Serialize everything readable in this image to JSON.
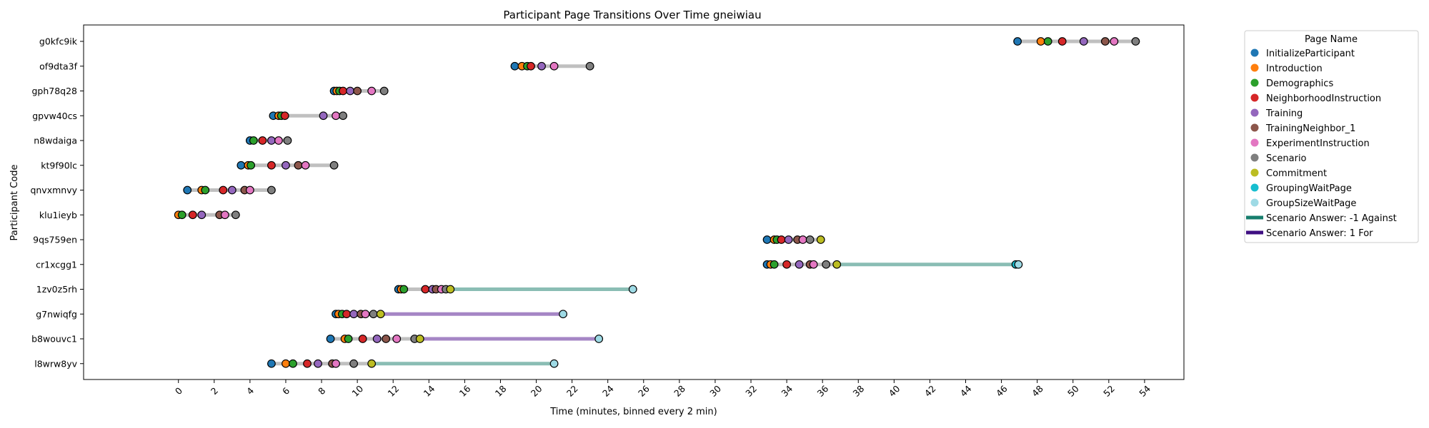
{
  "chart_data": {
    "type": "scatter",
    "title": "Participant Page Transitions Over Time gneiwiau",
    "xlabel": "Time (minutes, binned every 2 min)",
    "ylabel": "Participant Code",
    "xlim": [
      -5.3,
      56.2
    ],
    "xticks": [
      0,
      2,
      4,
      6,
      8,
      10,
      12,
      14,
      16,
      18,
      20,
      22,
      24,
      26,
      28,
      30,
      32,
      34,
      36,
      38,
      40,
      42,
      44,
      46,
      48,
      50,
      52,
      54
    ],
    "grid": false,
    "legend_position": "outside-top-right",
    "legend_title": "Page Name",
    "pages": [
      {
        "name": "InitializeParticipant",
        "color": "#1f77b4"
      },
      {
        "name": "Introduction",
        "color": "#ff7f0e"
      },
      {
        "name": "Demographics",
        "color": "#2ca02c"
      },
      {
        "name": "NeighborhoodInstruction",
        "color": "#d62728"
      },
      {
        "name": "Training",
        "color": "#9467bd"
      },
      {
        "name": "TrainingNeighbor_1",
        "color": "#8c564b"
      },
      {
        "name": "ExperimentInstruction",
        "color": "#e377c2"
      },
      {
        "name": "Scenario",
        "color": "#7f7f7f"
      },
      {
        "name": "Commitment",
        "color": "#bcbd22"
      },
      {
        "name": "GroupingWaitPage",
        "color": "#17becf"
      },
      {
        "name": "GroupSizeWaitPage",
        "color": "#9edae5"
      }
    ],
    "line_legend": [
      {
        "name": "Scenario Answer: -1 Against",
        "color": "#177e6d"
      },
      {
        "name": "Scenario Answer: 1 For",
        "color": "#3f0f82"
      }
    ],
    "segment_colors": {
      "neutral": "#c0c0c0",
      "-1": "#8abdb4",
      "1": "#a586c5"
    },
    "participants": [
      {
        "code": "g0kfc9ik",
        "answer": null,
        "points": [
          {
            "page": "InitializeParticipant",
            "t": 46.9
          },
          {
            "page": "Introduction",
            "t": 48.2
          },
          {
            "page": "Demographics",
            "t": 48.6
          },
          {
            "page": "NeighborhoodInstruction",
            "t": 49.4
          },
          {
            "page": "Training",
            "t": 50.6
          },
          {
            "page": "TrainingNeighbor_1",
            "t": 51.8
          },
          {
            "page": "ExperimentInstruction",
            "t": 52.3
          },
          {
            "page": "Scenario",
            "t": 53.5
          }
        ]
      },
      {
        "code": "of9dta3f",
        "answer": null,
        "points": [
          {
            "page": "InitializeParticipant",
            "t": 18.8
          },
          {
            "page": "Introduction",
            "t": 19.2
          },
          {
            "page": "Demographics",
            "t": 19.5
          },
          {
            "page": "NeighborhoodInstruction",
            "t": 19.7
          },
          {
            "page": "Training",
            "t": 20.3
          },
          {
            "page": "ExperimentInstruction",
            "t": 21.0
          },
          {
            "page": "Scenario",
            "t": 23.0
          }
        ]
      },
      {
        "code": "gph78q28",
        "answer": null,
        "points": [
          {
            "page": "InitializeParticipant",
            "t": 8.7
          },
          {
            "page": "Introduction",
            "t": 8.85
          },
          {
            "page": "Demographics",
            "t": 9.0
          },
          {
            "page": "NeighborhoodInstruction",
            "t": 9.2
          },
          {
            "page": "Training",
            "t": 9.6
          },
          {
            "page": "TrainingNeighbor_1",
            "t": 10.0
          },
          {
            "page": "ExperimentInstruction",
            "t": 10.8
          },
          {
            "page": "Scenario",
            "t": 11.5
          }
        ]
      },
      {
        "code": "gpvw40cs",
        "answer": null,
        "points": [
          {
            "page": "InitializeParticipant",
            "t": 5.3
          },
          {
            "page": "Introduction",
            "t": 5.6
          },
          {
            "page": "Demographics",
            "t": 5.75
          },
          {
            "page": "NeighborhoodInstruction",
            "t": 5.95
          },
          {
            "page": "Training",
            "t": 8.1
          },
          {
            "page": "ExperimentInstruction",
            "t": 8.8
          },
          {
            "page": "Scenario",
            "t": 9.2
          }
        ]
      },
      {
        "code": "n8wdaiga",
        "answer": null,
        "points": [
          {
            "page": "InitializeParticipant",
            "t": 4.0
          },
          {
            "page": "Demographics",
            "t": 4.2
          },
          {
            "page": "NeighborhoodInstruction",
            "t": 4.7
          },
          {
            "page": "Training",
            "t": 5.2
          },
          {
            "page": "ExperimentInstruction",
            "t": 5.6
          },
          {
            "page": "Scenario",
            "t": 6.1
          }
        ]
      },
      {
        "code": "kt9f90lc",
        "answer": null,
        "points": [
          {
            "page": "InitializeParticipant",
            "t": 3.5
          },
          {
            "page": "Introduction",
            "t": 3.9
          },
          {
            "page": "Demographics",
            "t": 4.05
          },
          {
            "page": "NeighborhoodInstruction",
            "t": 5.2
          },
          {
            "page": "Training",
            "t": 6.0
          },
          {
            "page": "TrainingNeighbor_1",
            "t": 6.7
          },
          {
            "page": "ExperimentInstruction",
            "t": 7.1
          },
          {
            "page": "Scenario",
            "t": 8.7
          }
        ]
      },
      {
        "code": "qnvxmnvy",
        "answer": null,
        "points": [
          {
            "page": "InitializeParticipant",
            "t": 0.5
          },
          {
            "page": "Introduction",
            "t": 1.3
          },
          {
            "page": "Demographics",
            "t": 1.5
          },
          {
            "page": "NeighborhoodInstruction",
            "t": 2.5
          },
          {
            "page": "Training",
            "t": 3.0
          },
          {
            "page": "TrainingNeighbor_1",
            "t": 3.7
          },
          {
            "page": "ExperimentInstruction",
            "t": 4.0
          },
          {
            "page": "Scenario",
            "t": 5.2
          }
        ]
      },
      {
        "code": "klu1ieyb",
        "answer": null,
        "points": [
          {
            "page": "Introduction",
            "t": 0.0
          },
          {
            "page": "Demographics",
            "t": 0.2
          },
          {
            "page": "NeighborhoodInstruction",
            "t": 0.8
          },
          {
            "page": "Training",
            "t": 1.3
          },
          {
            "page": "TrainingNeighbor_1",
            "t": 2.3
          },
          {
            "page": "ExperimentInstruction",
            "t": 2.6
          },
          {
            "page": "Scenario",
            "t": 3.2
          }
        ]
      },
      {
        "code": "9qs759en",
        "answer": null,
        "points": [
          {
            "page": "InitializeParticipant",
            "t": 32.9
          },
          {
            "page": "Introduction",
            "t": 33.3
          },
          {
            "page": "Demographics",
            "t": 33.45
          },
          {
            "page": "NeighborhoodInstruction",
            "t": 33.7
          },
          {
            "page": "Training",
            "t": 34.1
          },
          {
            "page": "TrainingNeighbor_1",
            "t": 34.6
          },
          {
            "page": "ExperimentInstruction",
            "t": 34.9
          },
          {
            "page": "Scenario",
            "t": 35.3
          },
          {
            "page": "Commitment",
            "t": 35.9
          }
        ]
      },
      {
        "code": "cr1xcgg1",
        "answer": "-1",
        "points": [
          {
            "page": "InitializeParticipant",
            "t": 32.9
          },
          {
            "page": "Introduction",
            "t": 33.1
          },
          {
            "page": "Demographics",
            "t": 33.3
          },
          {
            "page": "NeighborhoodInstruction",
            "t": 34.0
          },
          {
            "page": "Training",
            "t": 34.7
          },
          {
            "page": "TrainingNeighbor_1",
            "t": 35.3
          },
          {
            "page": "ExperimentInstruction",
            "t": 35.5
          },
          {
            "page": "Scenario",
            "t": 36.2
          },
          {
            "page": "Commitment",
            "t": 36.8
          },
          {
            "page": "GroupingWaitPage",
            "t": 46.8
          },
          {
            "page": "GroupSizeWaitPage",
            "t": 46.95
          }
        ]
      },
      {
        "code": "1zv0z5rh",
        "answer": "-1",
        "points": [
          {
            "page": "InitializeParticipant",
            "t": 12.3
          },
          {
            "page": "Introduction",
            "t": 12.45
          },
          {
            "page": "Demographics",
            "t": 12.6
          },
          {
            "page": "NeighborhoodInstruction",
            "t": 13.8
          },
          {
            "page": "Training",
            "t": 14.2
          },
          {
            "page": "TrainingNeighbor_1",
            "t": 14.4
          },
          {
            "page": "ExperimentInstruction",
            "t": 14.7
          },
          {
            "page": "Scenario",
            "t": 14.95
          },
          {
            "page": "Commitment",
            "t": 15.2
          },
          {
            "page": "GroupSizeWaitPage",
            "t": 25.4
          }
        ]
      },
      {
        "code": "g7nwiqfg",
        "answer": "1",
        "points": [
          {
            "page": "InitializeParticipant",
            "t": 8.8
          },
          {
            "page": "Introduction",
            "t": 8.95
          },
          {
            "page": "Demographics",
            "t": 9.15
          },
          {
            "page": "NeighborhoodInstruction",
            "t": 9.4
          },
          {
            "page": "Training",
            "t": 9.8
          },
          {
            "page": "TrainingNeighbor_1",
            "t": 10.2
          },
          {
            "page": "ExperimentInstruction",
            "t": 10.45
          },
          {
            "page": "Scenario",
            "t": 10.9
          },
          {
            "page": "Commitment",
            "t": 11.3
          },
          {
            "page": "GroupSizeWaitPage",
            "t": 21.5
          }
        ]
      },
      {
        "code": "b8wouvc1",
        "answer": "1",
        "points": [
          {
            "page": "InitializeParticipant",
            "t": 8.5
          },
          {
            "page": "Introduction",
            "t": 9.3
          },
          {
            "page": "Demographics",
            "t": 9.5
          },
          {
            "page": "NeighborhoodInstruction",
            "t": 10.3
          },
          {
            "page": "Training",
            "t": 11.1
          },
          {
            "page": "TrainingNeighbor_1",
            "t": 11.6
          },
          {
            "page": "ExperimentInstruction",
            "t": 12.2
          },
          {
            "page": "Scenario",
            "t": 13.2
          },
          {
            "page": "Commitment",
            "t": 13.5
          },
          {
            "page": "GroupSizeWaitPage",
            "t": 23.5
          }
        ]
      },
      {
        "code": "l8wrw8yv",
        "answer": "-1",
        "points": [
          {
            "page": "InitializeParticipant",
            "t": 5.2
          },
          {
            "page": "Introduction",
            "t": 6.0
          },
          {
            "page": "Demographics",
            "t": 6.4
          },
          {
            "page": "NeighborhoodInstruction",
            "t": 7.2
          },
          {
            "page": "Training",
            "t": 7.8
          },
          {
            "page": "TrainingNeighbor_1",
            "t": 8.6
          },
          {
            "page": "ExperimentInstruction",
            "t": 8.8
          },
          {
            "page": "Scenario",
            "t": 9.8
          },
          {
            "page": "Commitment",
            "t": 10.8
          },
          {
            "page": "GroupSizeWaitPage",
            "t": 21.0
          }
        ]
      }
    ]
  }
}
